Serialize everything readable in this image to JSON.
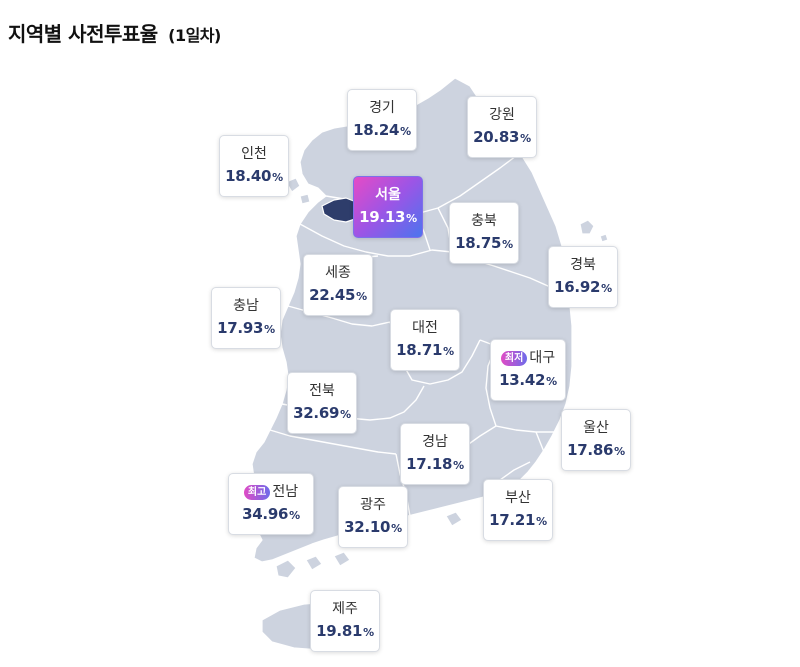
{
  "title": {
    "main": "지역별 사전투표율",
    "sub": "(1일차)"
  },
  "regions": {
    "gyeonggi": {
      "name": "경기",
      "rate": "18.24"
    },
    "gangwon": {
      "name": "강원",
      "rate": "20.83"
    },
    "incheon": {
      "name": "인천",
      "rate": "18.40"
    },
    "seoul": {
      "name": "서울",
      "rate": "19.13"
    },
    "chungbuk": {
      "name": "충북",
      "rate": "18.75"
    },
    "gyeongbuk": {
      "name": "경북",
      "rate": "16.92"
    },
    "sejong": {
      "name": "세종",
      "rate": "22.45"
    },
    "chungnam": {
      "name": "충남",
      "rate": "17.93"
    },
    "daejeon": {
      "name": "대전",
      "rate": "18.71"
    },
    "daegu": {
      "name": "대구",
      "rate": "13.42",
      "badge": "최저"
    },
    "jeonbuk": {
      "name": "전북",
      "rate": "32.69"
    },
    "ulsan": {
      "name": "울산",
      "rate": "17.86"
    },
    "gyeongnam": {
      "name": "경남",
      "rate": "17.18"
    },
    "jeonnam": {
      "name": "전남",
      "rate": "34.96",
      "badge": "최고"
    },
    "gwangju": {
      "name": "광주",
      "rate": "32.10"
    },
    "busan": {
      "name": "부산",
      "rate": "17.21"
    },
    "jeju": {
      "name": "제주",
      "rate": "19.81"
    }
  },
  "unit": "%",
  "colors": {
    "map_fill": "#cdd3df",
    "highlight_start": "#e54bc6",
    "highlight_end": "#4c74ee",
    "rate_text": "#2a3a6c"
  }
}
